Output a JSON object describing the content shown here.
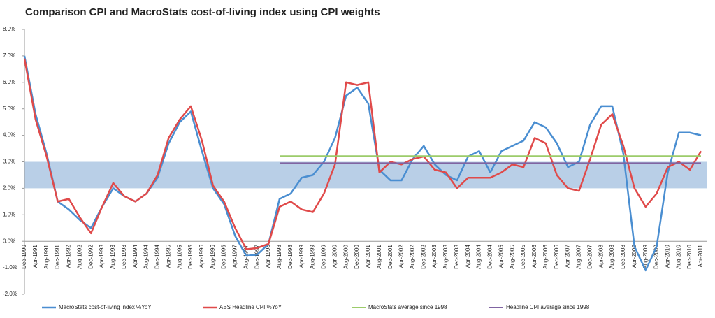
{
  "chart_data": {
    "type": "line",
    "title": "Comparison CPI and MacroStats cost-of-living index using CPI weights",
    "categories": [
      "Dec-1990",
      "Apr-1991",
      "Aug-1991",
      "Dec-1991",
      "Apr-1992",
      "Aug-1992",
      "Dec-1992",
      "Apr-1993",
      "Aug-1993",
      "Dec-1993",
      "Apr-1994",
      "Aug-1994",
      "Dec-1994",
      "Apr-1995",
      "Aug-1995",
      "Dec-1995",
      "Apr-1996",
      "Aug-1996",
      "Dec-1996",
      "Apr-1997",
      "Aug-1997",
      "Dec-1997",
      "Apr-1998",
      "Aug-1998",
      "Dec-1998",
      "Apr-1999",
      "Aug-1999",
      "Dec-1999",
      "Apr-2000",
      "Aug-2000",
      "Dec-2000",
      "Apr-2001",
      "Aug-2001",
      "Dec-2001",
      "Apr-2002",
      "Aug-2002",
      "Dec-2002",
      "Apr-2003",
      "Aug-2003",
      "Dec-2003",
      "Apr-2004",
      "Aug-2004",
      "Dec-2004",
      "Apr-2005",
      "Aug-2005",
      "Dec-2005",
      "Apr-2006",
      "Aug-2006",
      "Dec-2006",
      "Apr-2007",
      "Aug-2007",
      "Dec-2007",
      "Apr-2008",
      "Aug-2008",
      "Dec-2008",
      "Apr-2009",
      "Aug-2009",
      "Dec-2009",
      "Apr-2010",
      "Aug-2010",
      "Dec-2010",
      "Apr-2011"
    ],
    "series": [
      {
        "name": "MacroStats cost-of-living index %YoY",
        "color": "#4a8ed1",
        "width": 2.5,
        "values": [
          7.0,
          4.8,
          3.3,
          1.5,
          1.2,
          0.8,
          0.5,
          1.3,
          2.0,
          1.7,
          1.5,
          1.8,
          2.4,
          3.7,
          4.5,
          4.9,
          3.4,
          2.0,
          1.4,
          0.2,
          -0.55,
          -0.5,
          -0.1,
          1.6,
          1.8,
          2.4,
          2.5,
          3.0,
          3.9,
          5.5,
          5.8,
          5.2,
          2.7,
          2.3,
          2.3,
          3.1,
          3.6,
          2.9,
          2.5,
          2.3,
          3.2,
          3.4,
          2.6,
          3.4,
          3.6,
          3.8,
          4.5,
          4.3,
          3.7,
          2.8,
          3.0,
          4.4,
          5.1,
          5.1,
          3.3,
          -0.2,
          -1.1,
          -0.2,
          2.6,
          4.1,
          4.1,
          4.0
        ]
      },
      {
        "name": "ABS Headline CPI %YoY",
        "color": "#e04a4a",
        "width": 2.5,
        "values": [
          6.9,
          4.6,
          3.2,
          1.5,
          1.6,
          0.9,
          0.3,
          1.3,
          2.2,
          1.7,
          1.5,
          1.8,
          2.5,
          3.9,
          4.6,
          5.1,
          3.8,
          2.1,
          1.5,
          0.5,
          -0.3,
          -0.25,
          -0.1,
          1.3,
          1.5,
          1.2,
          1.1,
          1.8,
          2.9,
          6.0,
          5.9,
          6.0,
          2.6,
          3.0,
          2.9,
          3.1,
          3.2,
          2.7,
          2.6,
          2.0,
          2.4,
          2.4,
          2.4,
          2.6,
          2.9,
          2.8,
          3.9,
          3.7,
          2.5,
          2.0,
          1.9,
          3.1,
          4.4,
          4.8,
          3.6,
          2.0,
          1.3,
          1.8,
          2.8,
          3.0,
          2.7,
          3.4
        ]
      },
      {
        "name": "MacroStats average since 1998",
        "color": "#9ccc6a",
        "width": 2,
        "values": [
          null,
          null,
          null,
          null,
          null,
          null,
          null,
          null,
          null,
          null,
          null,
          null,
          null,
          null,
          null,
          null,
          null,
          null,
          null,
          null,
          null,
          null,
          null,
          3.22,
          3.22,
          3.22,
          3.22,
          3.22,
          3.22,
          3.22,
          3.22,
          3.22,
          3.22,
          3.22,
          3.22,
          3.22,
          3.22,
          3.22,
          3.22,
          3.22,
          3.22,
          3.22,
          3.22,
          3.22,
          3.22,
          3.22,
          3.22,
          3.22,
          3.22,
          3.22,
          3.22,
          3.22,
          3.22,
          3.22,
          3.22,
          3.22,
          3.22,
          3.22,
          3.22,
          3.22,
          3.22,
          3.22
        ]
      },
      {
        "name": "Headline CPI average since 1998",
        "color": "#8064a2",
        "width": 2,
        "values": [
          null,
          null,
          null,
          null,
          null,
          null,
          null,
          null,
          null,
          null,
          null,
          null,
          null,
          null,
          null,
          null,
          null,
          null,
          null,
          null,
          null,
          null,
          null,
          2.95,
          2.95,
          2.95,
          2.95,
          2.95,
          2.95,
          2.95,
          2.95,
          2.95,
          2.95,
          2.95,
          2.95,
          2.95,
          2.95,
          2.95,
          2.95,
          2.95,
          2.95,
          2.95,
          2.95,
          2.95,
          2.95,
          2.95,
          2.95,
          2.95,
          2.95,
          2.95,
          2.95,
          2.95,
          2.95,
          2.95,
          2.95,
          2.95,
          2.95,
          2.95,
          2.95,
          2.95,
          2.95,
          2.95
        ]
      }
    ],
    "shaded_band": {
      "range": [
        2,
        3
      ],
      "color": "#b9cfe7"
    },
    "ylim": [
      -2,
      8
    ],
    "yticks": [
      {
        "value": -2,
        "label": "-2.0%"
      },
      {
        "value": -1,
        "label": "-1.0%"
      },
      {
        "value": 0,
        "label": "0.0%"
      },
      {
        "value": 1,
        "label": "1.0%"
      },
      {
        "value": 2,
        "label": "2.0%"
      },
      {
        "value": 3,
        "label": "3.0%"
      },
      {
        "value": 4,
        "label": "4.0%"
      },
      {
        "value": 5,
        "label": "5.0%"
      },
      {
        "value": 6,
        "label": "6.0%"
      },
      {
        "value": 7,
        "label": "7.0%"
      },
      {
        "value": 8,
        "label": "8.0%"
      }
    ],
    "grid": false,
    "legend": "bottom"
  }
}
